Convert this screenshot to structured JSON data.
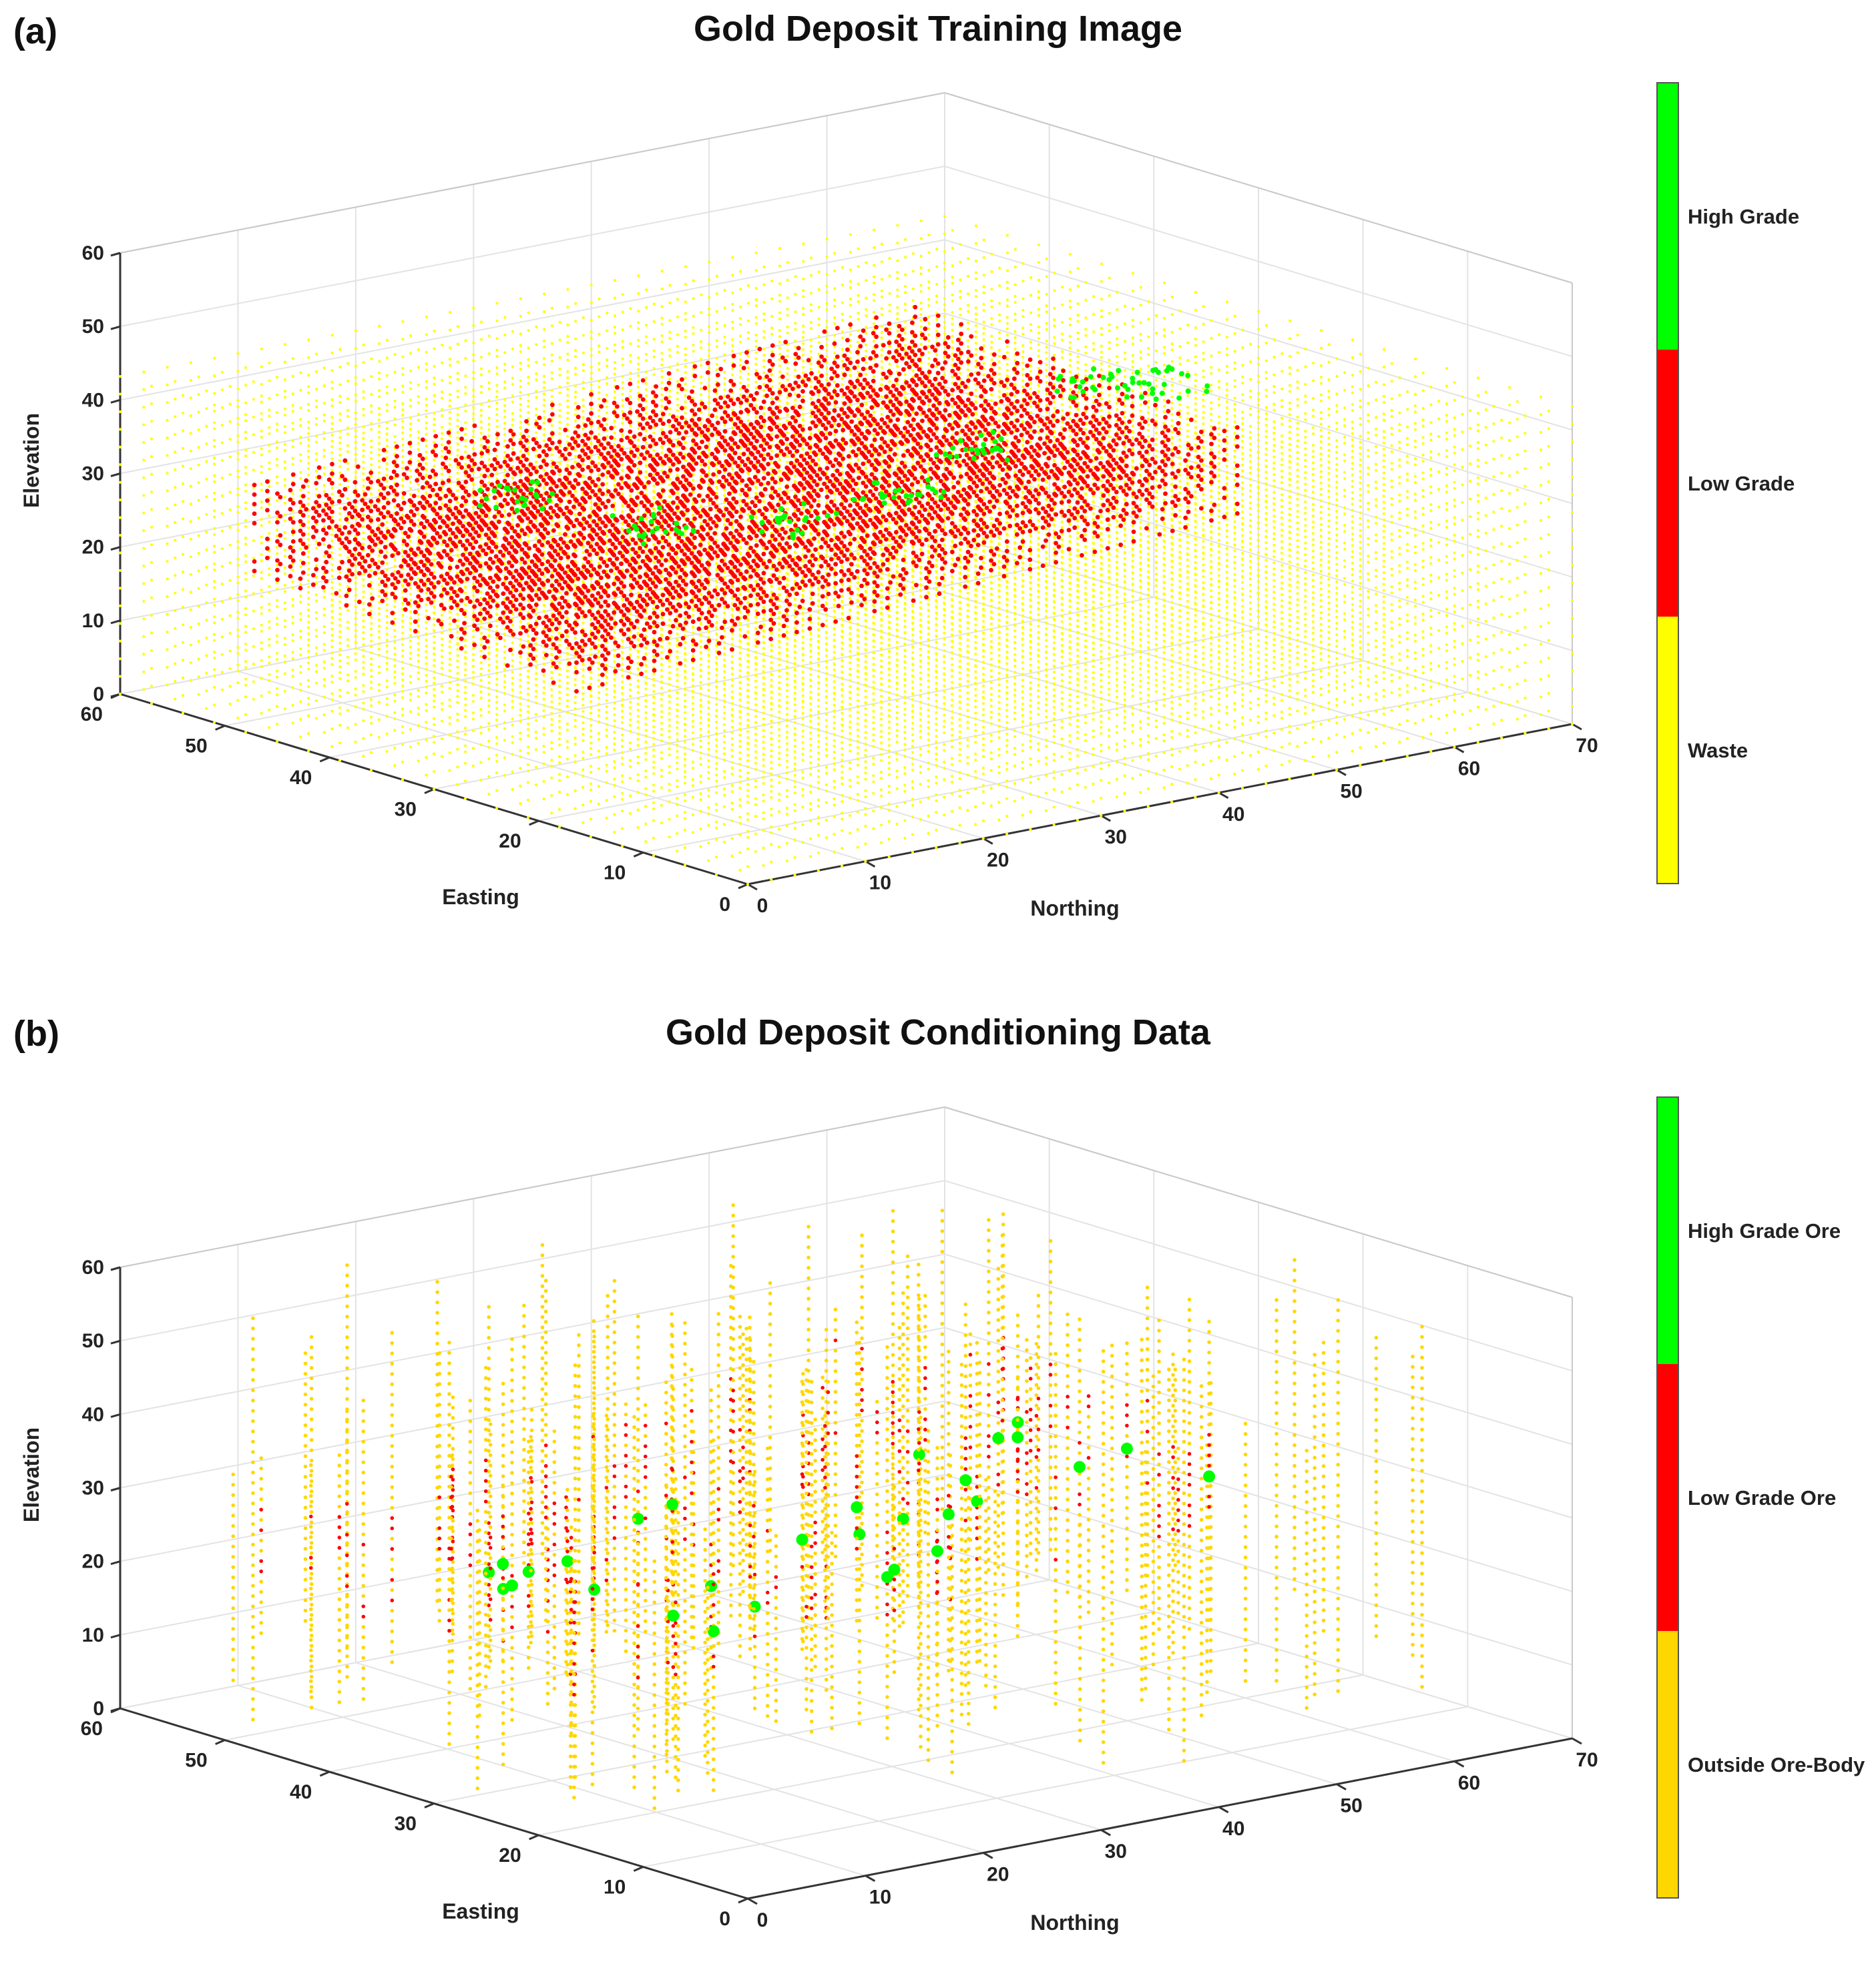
{
  "panels": [
    {
      "label": "(a)",
      "title": "Gold Deposit Training Image",
      "colorbar": [
        {
          "label": "High Grade",
          "color": "#00ff00"
        },
        {
          "label": "Low Grade",
          "color": "#ff0000"
        },
        {
          "label": "Waste",
          "color": "#ffff00"
        }
      ]
    },
    {
      "label": "(b)",
      "title": "Gold Deposit Conditioning Data",
      "colorbar": [
        {
          "label": "High Grade Ore",
          "color": "#00ff00"
        },
        {
          "label": "Low Grade Ore",
          "color": "#ff0000"
        },
        {
          "label": "Outside Ore-Body",
          "color": "#ffd700"
        }
      ]
    }
  ],
  "chart_data": [
    {
      "type": "scatter",
      "subtype": "3d-voxel",
      "title": "Gold Deposit Training Image",
      "xlabel": "Northing",
      "ylabel": "Easting",
      "zlabel": "Elevation",
      "xlim": [
        0,
        70
      ],
      "ylim": [
        0,
        60
      ],
      "zlim": [
        0,
        60
      ],
      "xticks": [
        0,
        10,
        20,
        30,
        40,
        50,
        60,
        70
      ],
      "yticks": [
        0,
        10,
        20,
        30,
        40,
        50,
        60
      ],
      "zticks": [
        0,
        10,
        20,
        30,
        40,
        50,
        60
      ],
      "grid": true,
      "categories": [
        "High Grade",
        "Low Grade",
        "Waste"
      ],
      "series": [
        {
          "name": "Waste",
          "color": "#ffff00",
          "extent": {
            "northing": [
              0,
              70
            ],
            "easting": [
              0,
              60
            ],
            "elevation": [
              0,
              45
            ]
          }
        },
        {
          "name": "Low Grade",
          "color": "#ff0000",
          "extent": {
            "northing": [
              5,
              65
            ],
            "easting": [
              20,
              55
            ],
            "elevation": [
              5,
              40
            ]
          }
        },
        {
          "name": "High Grade",
          "color": "#00ff00",
          "extent": {
            "northing": [
              15,
              60
            ],
            "easting": [
              20,
              40
            ],
            "elevation": [
              20,
              38
            ]
          }
        }
      ]
    },
    {
      "type": "scatter",
      "subtype": "3d-drillholes",
      "title": "Gold Deposit Conditioning Data",
      "xlabel": "Northing",
      "ylabel": "Easting",
      "zlabel": "Elevation",
      "xlim": [
        0,
        70
      ],
      "ylim": [
        0,
        60
      ],
      "zlim": [
        0,
        60
      ],
      "xticks": [
        0,
        10,
        20,
        30,
        40,
        50,
        60,
        70
      ],
      "yticks": [
        0,
        10,
        20,
        30,
        40,
        50,
        60
      ],
      "zticks": [
        0,
        10,
        20,
        30,
        40,
        50,
        60
      ],
      "grid": true,
      "categories": [
        "High Grade Ore",
        "Low Grade Ore",
        "Outside Ore-Body"
      ],
      "series": [
        {
          "name": "Outside Ore-Body",
          "color": "#ffd700",
          "extent": {
            "northing": [
              0,
              70
            ],
            "easting": [
              0,
              60
            ],
            "elevation": [
              0,
              60
            ]
          }
        },
        {
          "name": "Low Grade Ore",
          "color": "#ff0000",
          "extent": {
            "northing": [
              5,
              65
            ],
            "easting": [
              20,
              55
            ],
            "elevation": [
              10,
              40
            ]
          }
        },
        {
          "name": "High Grade Ore",
          "color": "#00ff00",
          "extent": {
            "northing": [
              15,
              60
            ],
            "easting": [
              20,
              40
            ],
            "elevation": [
              20,
              38
            ]
          }
        }
      ]
    }
  ]
}
